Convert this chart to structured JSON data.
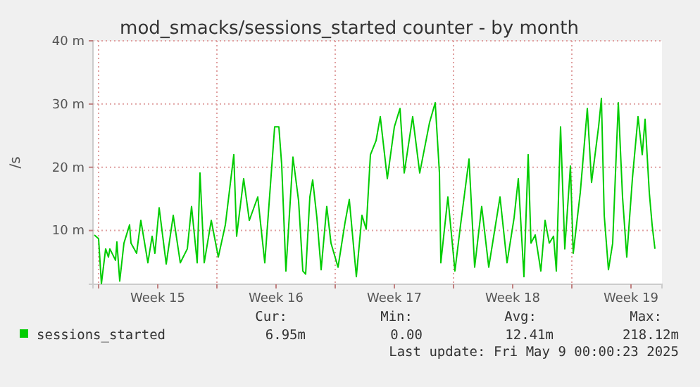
{
  "chart_data": {
    "type": "line",
    "title": "mod_smacks/sessions_started counter - by month",
    "ylabel": "/s",
    "x": [
      "2025-04-05T18:00",
      "2025-04-06T00:00",
      "2025-04-06T04:00",
      "2025-04-06T10:00",
      "2025-04-06T14:00",
      "2025-04-06T16:00",
      "2025-04-07T00:00",
      "2025-04-07T02:00",
      "2025-04-07T06:00",
      "2025-04-07T12:00",
      "2025-04-07T20:00",
      "2025-04-07T22:00",
      "2025-04-08T06:00",
      "2025-04-08T12:00",
      "2025-04-08T22:00",
      "2025-04-09T04:00",
      "2025-04-09T08:00",
      "2025-04-09T14:00",
      "2025-04-10T00:00",
      "2025-04-10T10:00",
      "2025-04-10T20:00",
      "2025-04-11T06:00",
      "2025-04-11T12:00",
      "2025-04-11T20:00",
      "2025-04-12T00:00",
      "2025-04-12T06:00",
      "2025-04-12T16:00",
      "2025-04-13T02:00",
      "2025-04-13T12:00",
      "2025-04-14T00:00",
      "2025-04-14T04:00",
      "2025-04-14T14:00",
      "2025-04-14T22:00",
      "2025-04-15T10:00",
      "2025-04-15T20:00",
      "2025-04-16T10:00",
      "2025-04-16T16:00",
      "2025-04-16T20:00",
      "2025-04-17T02:00",
      "2025-04-17T12:00",
      "2025-04-17T20:00",
      "2025-04-18T02:00",
      "2025-04-18T06:00",
      "2025-04-18T12:00",
      "2025-04-18T16:00",
      "2025-04-18T22:00",
      "2025-04-19T04:00",
      "2025-04-19T12:00",
      "2025-04-19T18:00",
      "2025-04-20T04:00",
      "2025-04-20T14:00",
      "2025-04-20T20:00",
      "2025-04-21T06:00",
      "2025-04-21T14:00",
      "2025-04-21T20:00",
      "2025-04-22T02:00",
      "2025-04-22T10:00",
      "2025-04-22T16:00",
      "2025-04-23T02:00",
      "2025-04-23T12:00",
      "2025-04-23T20:00",
      "2025-04-24T02:00",
      "2025-04-24T14:00",
      "2025-04-25T00:00",
      "2025-04-25T14:00",
      "2025-04-25T22:00",
      "2025-04-26T04:00",
      "2025-04-26T06:00",
      "2025-04-26T16:00",
      "2025-04-27T02:00",
      "2025-04-27T10:00",
      "2025-04-27T22:00",
      "2025-04-28T06:00",
      "2025-04-28T16:00",
      "2025-04-29T02:00",
      "2025-04-29T18:00",
      "2025-04-30T04:00",
      "2025-04-30T14:00",
      "2025-04-30T20:00",
      "2025-05-01T04:00",
      "2025-05-01T10:00",
      "2025-05-01T14:00",
      "2025-05-01T20:00",
      "2025-05-02T04:00",
      "2025-05-02T10:00",
      "2025-05-02T16:00",
      "2025-05-02T22:00",
      "2025-05-03T02:00",
      "2025-05-03T08:00",
      "2025-05-03T14:00",
      "2025-05-03T22:00",
      "2025-05-04T02:00",
      "2025-05-04T12:00",
      "2025-05-04T22:00",
      "2025-05-05T04:00",
      "2025-05-05T14:00",
      "2025-05-05T18:00",
      "2025-05-05T22:00",
      "2025-05-06T04:00",
      "2025-05-06T10:00",
      "2025-05-06T18:00",
      "2025-05-07T00:00",
      "2025-05-07T06:00",
      "2025-05-07T14:00",
      "2025-05-07T22:00",
      "2025-05-08T04:00",
      "2025-05-08T08:00",
      "2025-05-08T14:00",
      "2025-05-08T18:00",
      "2025-05-08T22:00"
    ],
    "series": [
      {
        "name": "sessions_started",
        "color": "#00cc00",
        "values": [
          9.3,
          8.7,
          1.6,
          7.1,
          5.8,
          7.1,
          5.3,
          8.2,
          2,
          8,
          10.9,
          8,
          6.4,
          11.6,
          4.9,
          9.1,
          6.4,
          13.6,
          4.7,
          12.4,
          4.9,
          7.1,
          13.8,
          4.9,
          19.1,
          4.9,
          11.6,
          5.8,
          10.9,
          22,
          9.1,
          18.2,
          11.6,
          15.3,
          4.9,
          26.4,
          26.4,
          20.4,
          3.6,
          21.6,
          14.7,
          3.6,
          3.1,
          15.3,
          18,
          12,
          3.8,
          13.8,
          8,
          4.2,
          11.3,
          14.9,
          2.7,
          12.4,
          10.2,
          22,
          24.2,
          28,
          18.2,
          26.4,
          29.3,
          19.1,
          28,
          19.1,
          27.1,
          30.2,
          19.1,
          4.9,
          15.3,
          3.6,
          10.9,
          21.3,
          4.2,
          13.8,
          4.2,
          15.3,
          4.9,
          12,
          18.2,
          2.7,
          22,
          8,
          9.3,
          3.6,
          11.6,
          8,
          9.1,
          3.6,
          26.4,
          7.1,
          20.2,
          6.4,
          16,
          29.3,
          17.6,
          26.4,
          30.9,
          12.4,
          3.8,
          8,
          30.2,
          15.3,
          5.8,
          18.2,
          28,
          22,
          27.6,
          16,
          10.9,
          7.1
        ]
      }
    ],
    "xlim": [
      "2025-04-05T16:00",
      "2025-05-09T08:00"
    ],
    "xticks": [
      {
        "value": "2025-04-06",
        "label": null
      },
      {
        "value": "2025-04-09T12:00",
        "label": "Week 15"
      },
      {
        "value": "2025-04-13",
        "label": null
      },
      {
        "value": "2025-04-16T12:00",
        "label": "Week 16"
      },
      {
        "value": "2025-04-20",
        "label": null
      },
      {
        "value": "2025-04-23T12:00",
        "label": "Week 17"
      },
      {
        "value": "2025-04-27",
        "label": null
      },
      {
        "value": "2025-04-30T12:00",
        "label": "Week 18"
      },
      {
        "value": "2025-05-04",
        "label": null
      },
      {
        "value": "2025-05-07T12:00",
        "label": "Week 19"
      }
    ],
    "ylim": [
      1.5,
      40
    ],
    "yticks": [
      {
        "value": 10,
        "label": "10 m"
      },
      {
        "value": 20,
        "label": "20 m"
      },
      {
        "value": 30,
        "label": "30 m"
      },
      {
        "value": 40,
        "label": "40 m"
      }
    ],
    "grid": true,
    "legend": "bottom",
    "marker": "none",
    "line_style": "solid",
    "annotations": [
      "Cur:",
      "Min:",
      "Avg:",
      "Max:",
      "6.95m",
      "0.00",
      "12.41m",
      "218.12m",
      "Last update: Fri May  9 00:00:23 2025"
    ]
  }
}
